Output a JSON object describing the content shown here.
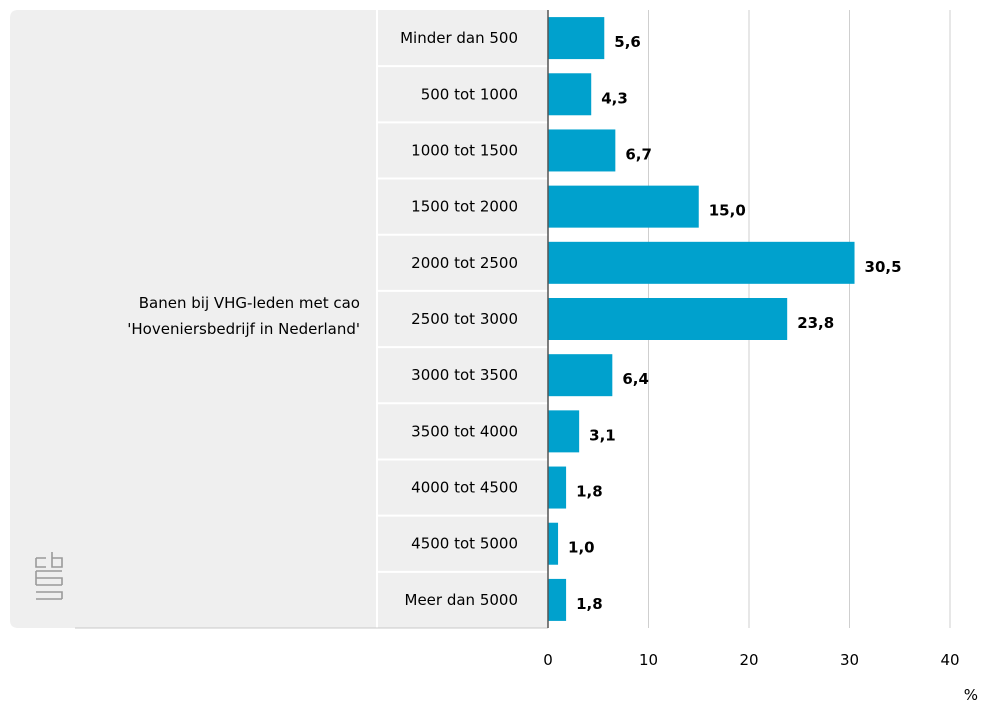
{
  "chart_data": {
    "type": "bar",
    "orientation": "horizontal",
    "group_label_lines": [
      "Banen bij VHG-leden met cao",
      "'Hoveniersbedrijf in Nederland'"
    ],
    "categories": [
      "Minder dan 500",
      "500 tot 1000",
      "1000 tot 1500",
      "1500 tot 2000",
      "2000 tot 2500",
      "2500 tot 3000",
      "3000 tot 3500",
      "3500 tot 4000",
      "4000 tot 4500",
      "4500 tot 5000",
      "Meer dan 5000"
    ],
    "values": [
      5.6,
      4.3,
      6.7,
      15.0,
      30.5,
      23.8,
      6.4,
      3.1,
      1.8,
      1.0,
      1.8
    ],
    "value_labels": [
      "5,6",
      "4,3",
      "6,7",
      "15,0",
      "30,5",
      "23,8",
      "6,4",
      "3,1",
      "1,8",
      "1,0",
      "1,8"
    ],
    "xlim": [
      0,
      40
    ],
    "xticks": [
      0,
      10,
      20,
      30,
      40
    ],
    "xtick_labels": [
      "0",
      "10",
      "20",
      "30",
      "40"
    ],
    "xunit": "%",
    "grid": true,
    "bar_color": "#00a1cd",
    "panel_color": "#efefef",
    "logo": "cbs-logo"
  }
}
